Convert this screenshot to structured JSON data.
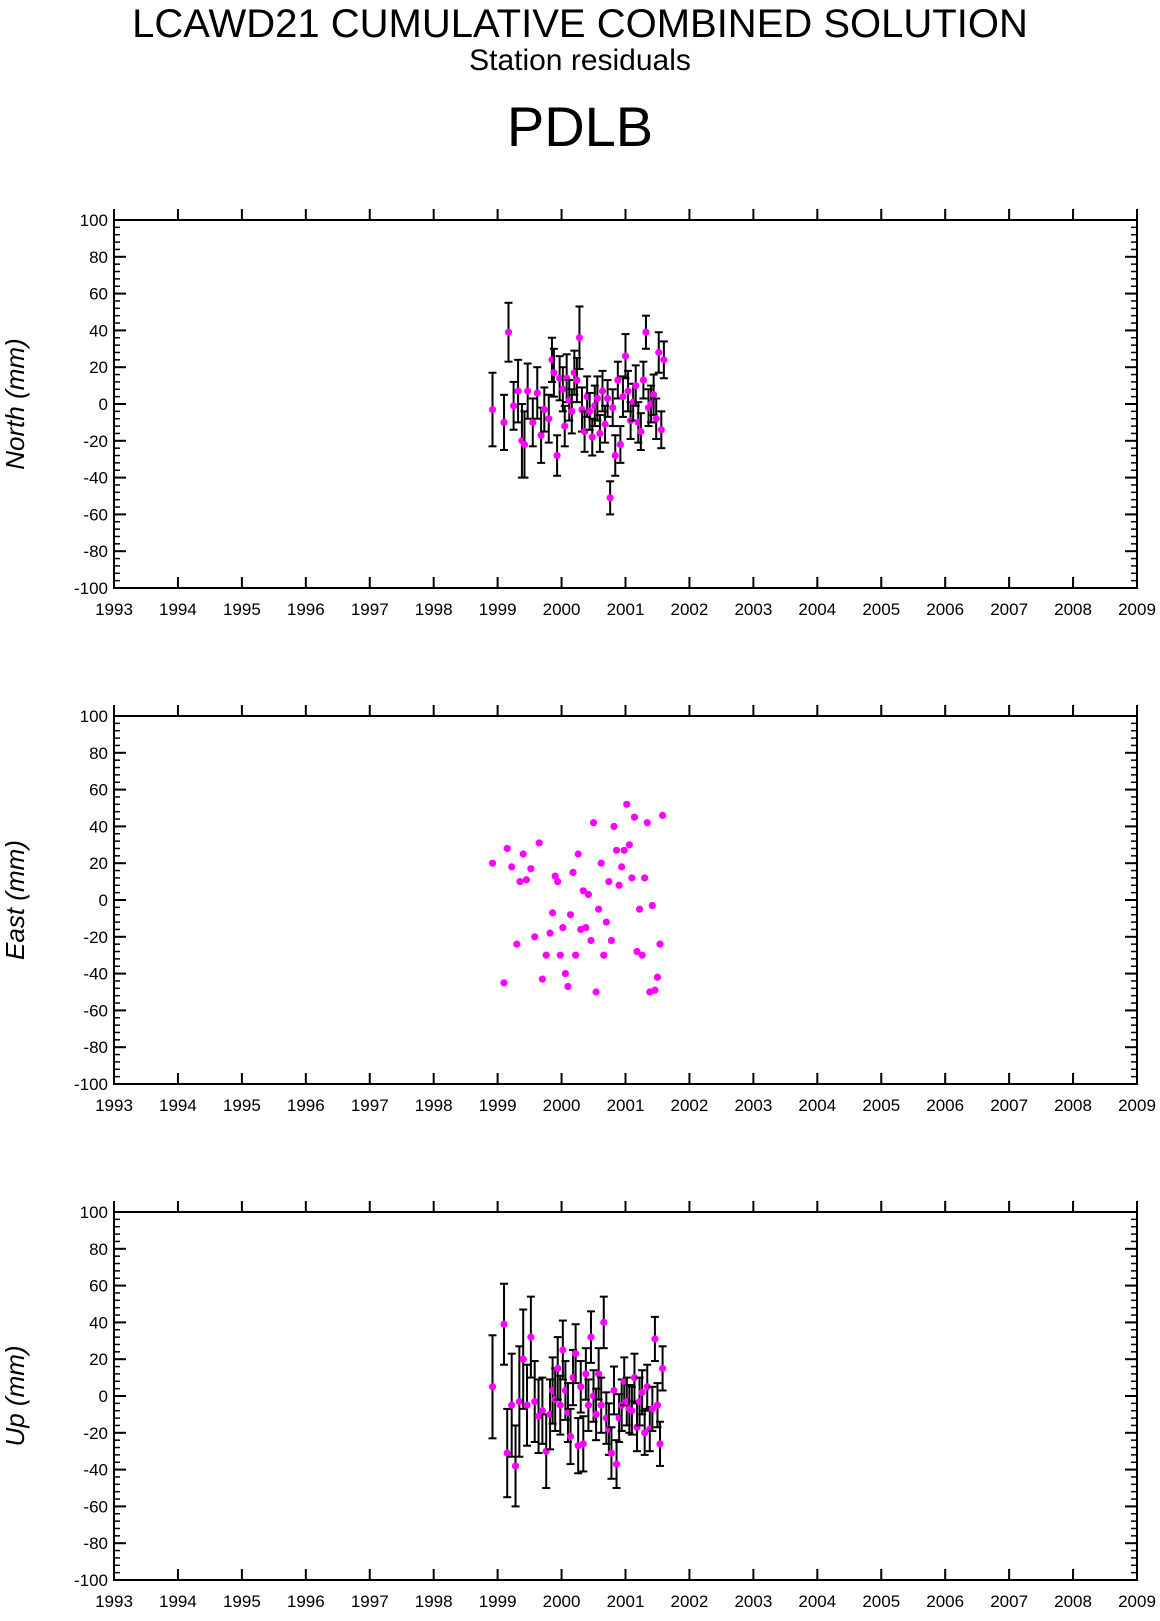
{
  "header": {
    "title": "LCAWD21 CUMULATIVE COMBINED SOLUTION",
    "subtitle": "Station residuals",
    "station": "PDLB"
  },
  "colors": {
    "marker": "#ff00ff",
    "errorbar": "#000000",
    "axis": "#000000"
  },
  "chart_data": [
    {
      "type": "scatter",
      "ylabel": "North (mm)",
      "xlim": [
        1993,
        2009
      ],
      "ylim": [
        -100,
        100
      ],
      "x_ticks": [
        "1993",
        "1994",
        "1995",
        "1996",
        "1997",
        "1998",
        "1999",
        "2000",
        "2001",
        "2002",
        "2003",
        "2004",
        "2005",
        "2006",
        "2007",
        "2008",
        "2009"
      ],
      "y_ticks": [
        "100",
        "80",
        "60",
        "40",
        "20",
        "0",
        "-20",
        "-40",
        "-60",
        "-80",
        "-100"
      ],
      "series": [
        {
          "x": [
            1998.92,
            1999.1,
            1999.17,
            1999.25,
            1999.32,
            1999.38,
            1999.42,
            1999.47,
            1999.55,
            1999.62,
            1999.68,
            1999.73,
            1999.8,
            1999.85,
            1999.88,
            1999.93,
            1999.97,
            2000.02,
            2000.05,
            2000.08,
            2000.12,
            2000.16,
            2000.2,
            2000.24,
            2000.28,
            2000.32,
            2000.36,
            2000.4,
            2000.44,
            2000.48,
            2000.52,
            2000.56,
            2000.6,
            2000.64,
            2000.68,
            2000.72,
            2000.76,
            2000.8,
            2000.84,
            2000.88,
            2000.92,
            2000.96,
            2001.0,
            2001.04,
            2001.08,
            2001.12,
            2001.16,
            2001.2,
            2001.24,
            2001.28,
            2001.32,
            2001.36,
            2001.4,
            2001.44,
            2001.48,
            2001.52,
            2001.56,
            2001.6
          ],
          "y": [
            -3,
            -10,
            39,
            -1,
            7,
            -20,
            -22,
            7,
            -10,
            6,
            -17,
            -3,
            -8,
            24,
            17,
            -28,
            14,
            8,
            -12,
            14,
            2,
            -4,
            17,
            13,
            36,
            -3,
            -15,
            4,
            -4,
            -18,
            -1,
            3,
            -16,
            7,
            -11,
            3,
            -51,
            -2,
            -28,
            13,
            -22,
            4,
            26,
            7,
            -9,
            1,
            10,
            -10,
            -15,
            13,
            39,
            -2,
            0,
            5,
            -8,
            28,
            -14,
            24
          ],
          "err": [
            20,
            15,
            16,
            13,
            17,
            20,
            18,
            15,
            13,
            14,
            15,
            12,
            13,
            12,
            13,
            11,
            12,
            12,
            11,
            13,
            11,
            12,
            12,
            12,
            17,
            12,
            11,
            11,
            10,
            10,
            11,
            12,
            10,
            11,
            10,
            10,
            9,
            10,
            11,
            10,
            10,
            11,
            12,
            11,
            10,
            10,
            11,
            11,
            10,
            10,
            9,
            10,
            10,
            11,
            11,
            11,
            10,
            10
          ]
        }
      ]
    },
    {
      "type": "scatter",
      "ylabel": "East (mm)",
      "xlim": [
        1993,
        2009
      ],
      "ylim": [
        -100,
        100
      ],
      "x_ticks": [
        "1993",
        "1994",
        "1995",
        "1996",
        "1997",
        "1998",
        "1999",
        "2000",
        "2001",
        "2002",
        "2003",
        "2004",
        "2005",
        "2006",
        "2007",
        "2008",
        "2009"
      ],
      "y_ticks": [
        "100",
        "80",
        "60",
        "40",
        "20",
        "0",
        "-20",
        "-40",
        "-60",
        "-80",
        "-100"
      ],
      "series": [
        {
          "x": [
            1998.92,
            1999.1,
            1999.15,
            1999.22,
            1999.3,
            1999.35,
            1999.4,
            1999.45,
            1999.52,
            1999.58,
            1999.65,
            1999.7,
            1999.76,
            1999.82,
            1999.86,
            1999.9,
            1999.94,
            1999.98,
            2000.02,
            2000.06,
            2000.1,
            2000.14,
            2000.18,
            2000.22,
            2000.26,
            2000.3,
            2000.34,
            2000.38,
            2000.42,
            2000.46,
            2000.5,
            2000.54,
            2000.58,
            2000.62,
            2000.66,
            2000.7,
            2000.74,
            2000.78,
            2000.82,
            2000.86,
            2000.9,
            2000.94,
            2000.98,
            2001.02,
            2001.06,
            2001.1,
            2001.14,
            2001.18,
            2001.22,
            2001.26,
            2001.3,
            2001.34,
            2001.38,
            2001.42,
            2001.46,
            2001.5,
            2001.54,
            2001.58
          ],
          "y": [
            20,
            -45,
            28,
            18,
            -24,
            10,
            25,
            11,
            17,
            -20,
            31,
            -43,
            -30,
            -18,
            -7,
            13,
            10,
            -30,
            -15,
            -40,
            -47,
            -8,
            15,
            -30,
            25,
            -16,
            5,
            -15,
            3,
            -22,
            42,
            -50,
            -5,
            20,
            -30,
            -12,
            10,
            -22,
            40,
            27,
            8,
            18,
            27,
            52,
            30,
            12,
            45,
            -28,
            -5,
            -30,
            12,
            42,
            -50,
            -3,
            -49,
            -42,
            -24,
            46
          ]
        }
      ]
    },
    {
      "type": "scatter",
      "ylabel": "Up (mm)",
      "xlim": [
        1993,
        2009
      ],
      "ylim": [
        -100,
        100
      ],
      "x_ticks": [
        "1993",
        "1994",
        "1995",
        "1996",
        "1997",
        "1998",
        "1999",
        "2000",
        "2001",
        "2002",
        "2003",
        "2004",
        "2005",
        "2006",
        "2007",
        "2008",
        "2009"
      ],
      "y_ticks": [
        "100",
        "80",
        "60",
        "40",
        "20",
        "0",
        "-20",
        "-40",
        "-60",
        "-80",
        "-100"
      ],
      "series": [
        {
          "x": [
            1998.92,
            1999.1,
            1999.15,
            1999.22,
            1999.28,
            1999.34,
            1999.4,
            1999.46,
            1999.52,
            1999.58,
            1999.64,
            1999.7,
            1999.76,
            1999.82,
            1999.86,
            1999.9,
            1999.94,
            1999.98,
            2000.02,
            2000.06,
            2000.1,
            2000.14,
            2000.18,
            2000.22,
            2000.26,
            2000.3,
            2000.34,
            2000.38,
            2000.42,
            2000.46,
            2000.5,
            2000.54,
            2000.58,
            2000.62,
            2000.66,
            2000.7,
            2000.74,
            2000.78,
            2000.82,
            2000.86,
            2000.9,
            2000.94,
            2000.98,
            2001.02,
            2001.06,
            2001.1,
            2001.14,
            2001.18,
            2001.22,
            2001.26,
            2001.3,
            2001.34,
            2001.38,
            2001.42,
            2001.46,
            2001.5,
            2001.54,
            2001.58
          ],
          "y": [
            5,
            39,
            -31,
            -5,
            -38,
            -3,
            20,
            -5,
            32,
            -3,
            -11,
            -8,
            -30,
            -10,
            3,
            -2,
            15,
            -5,
            25,
            3,
            -9,
            -22,
            10,
            23,
            -27,
            5,
            -26,
            12,
            -5,
            32,
            0,
            -10,
            12,
            -5,
            40,
            -12,
            -18,
            -31,
            3,
            -37,
            -12,
            -5,
            8,
            -3,
            -7,
            -8,
            10,
            -17,
            -3,
            2,
            -20,
            5,
            -18,
            -7,
            31,
            -5,
            -26,
            15
          ],
          "err": [
            28,
            22,
            24,
            28,
            22,
            30,
            27,
            22,
            22,
            22,
            20,
            18,
            20,
            19,
            18,
            17,
            17,
            16,
            16,
            16,
            16,
            15,
            15,
            16,
            15,
            14,
            15,
            14,
            14,
            14,
            14,
            14,
            14,
            15,
            14,
            14,
            14,
            14,
            13,
            13,
            13,
            14,
            13,
            13,
            13,
            13,
            13,
            13,
            13,
            12,
            12,
            12,
            12,
            12,
            12,
            12,
            12,
            12
          ]
        }
      ]
    }
  ]
}
